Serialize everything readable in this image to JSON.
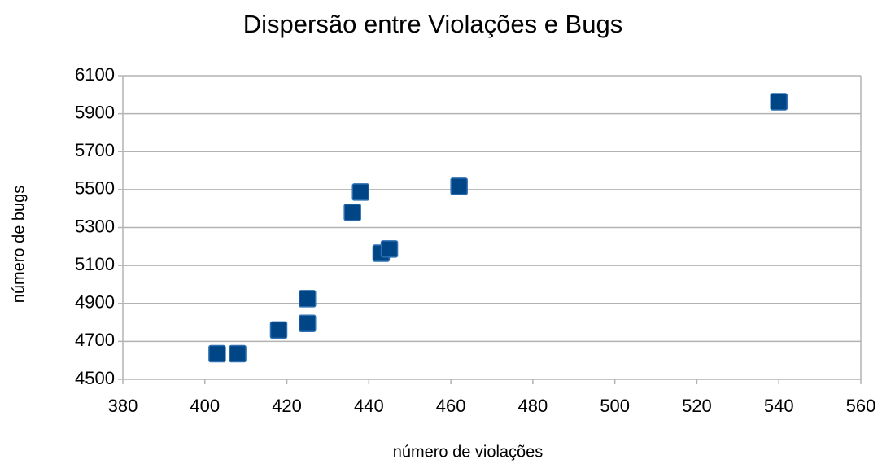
{
  "chart_data": {
    "type": "scatter",
    "title": "Dispersão entre Violações e Bugs",
    "x_label": "número de violações",
    "y_label": "número de bugs",
    "color": "#004586",
    "x": [
      403,
      408,
      418,
      425,
      425,
      436,
      438,
      443,
      445,
      462,
      540
    ],
    "values": [
      4635,
      4635,
      4760,
      4925,
      4795,
      5380,
      5487,
      5165,
      5187,
      5517,
      5963
    ],
    "xlim": [
      380,
      560
    ],
    "xticks": [
      380,
      400,
      420,
      440,
      460,
      480,
      500,
      520,
      540,
      560
    ],
    "ylim": [
      4500,
      6100
    ],
    "yticks": [
      4500,
      4700,
      4900,
      5100,
      5300,
      5500,
      5700,
      5900,
      6100
    ],
    "grid": true
  }
}
